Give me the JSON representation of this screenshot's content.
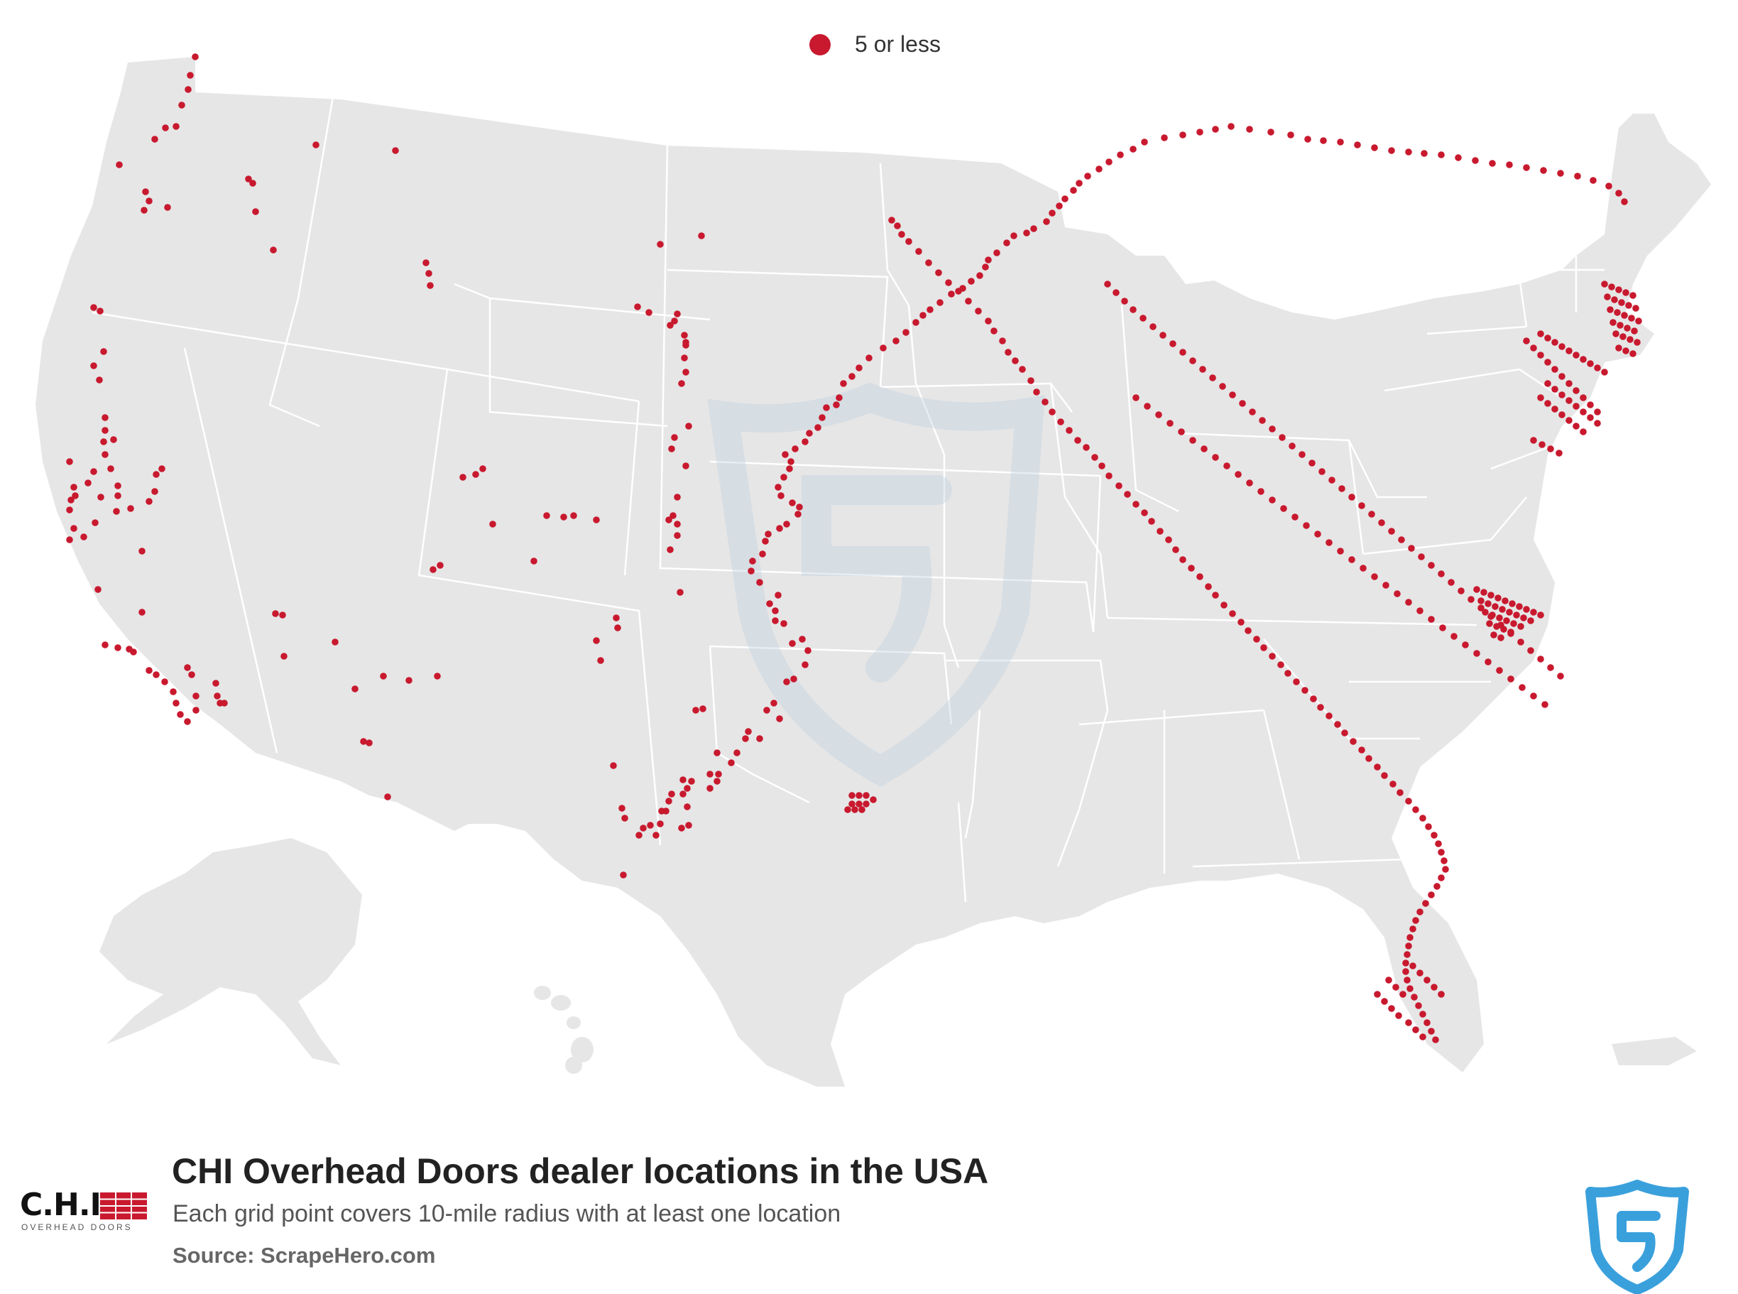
{
  "legend": {
    "label": "5 or less",
    "dot_color": "#c8192e"
  },
  "title": "CHI Overhead Doors dealer locations in the USA",
  "subtitle": "Each grid point covers 10-mile radius with at least one location",
  "source": "Source: ScrapeHero.com",
  "brand": {
    "name": "C.H.I.",
    "tagline": "OVERHEAD DOORS",
    "icon": "chi-garage-door-logo"
  },
  "watermark_icon": "scrapehero-shield-icon",
  "colors": {
    "land": "#e6e6e6",
    "borders": "#ffffff",
    "dots": "#c8192e",
    "shield": "#3aa0dc"
  }
}
